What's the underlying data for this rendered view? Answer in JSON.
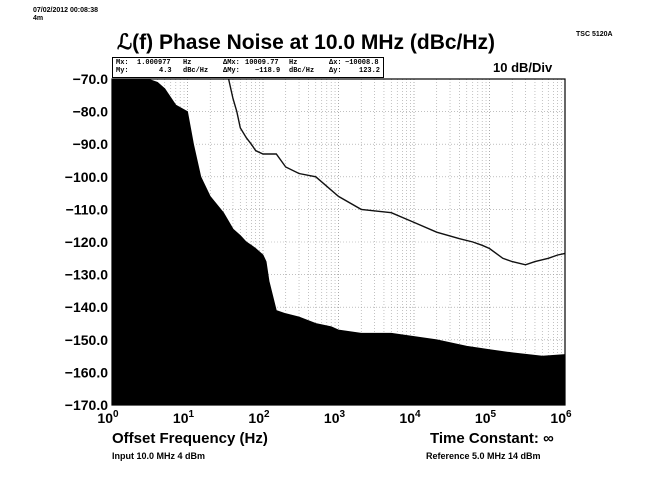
{
  "header": {
    "timestamp": "07/02/2012 00:08:38",
    "duration": "4m",
    "model": "TSC 5120A",
    "title": "ℒ(f) Phase Noise at 10.0 MHz (dBc/Hz)",
    "scale": "10 dB/Div"
  },
  "readout": {
    "mx_label": "Mx:",
    "mx_value": "1.000977",
    "mx_unit": "Hz",
    "my_label": "My:",
    "my_value": "4.3",
    "my_unit": "dBc/Hz",
    "dmx_label": "ΔMx:",
    "dmx_value": "10009.77",
    "dmx_unit": "Hz",
    "dmy_label": "ΔMy:",
    "dmy_value": "−118.9",
    "dmy_unit": "dBc/Hz",
    "dx_label": "Δx:",
    "dx_value": "−10008.8",
    "dy_label": "Δy:",
    "dy_value": "123.2"
  },
  "footer": {
    "xlabel": "Offset Frequency (Hz)",
    "time_constant": "Time Constant: ∞",
    "input": "Input 10.0 MHz 4 dBm",
    "reference": "Reference 5.0 MHz 14 dBm"
  },
  "chart_data": {
    "type": "area",
    "x_scale": "log",
    "xlim": [
      1,
      1000000
    ],
    "ylim": [
      -170,
      -70
    ],
    "grid": true,
    "y_ticks": [
      "−70.0",
      "−80.0",
      "−90.0",
      "−100.0",
      "−110.0",
      "−120.0",
      "−130.0",
      "−140.0",
      "−150.0",
      "−160.0",
      "−170.0"
    ],
    "x_ticks": [
      {
        "base": "10",
        "exp": "0"
      },
      {
        "base": "10",
        "exp": "1"
      },
      {
        "base": "10",
        "exp": "2"
      },
      {
        "base": "10",
        "exp": "3"
      },
      {
        "base": "10",
        "exp": "4"
      },
      {
        "base": "10",
        "exp": "5"
      },
      {
        "base": "10",
        "exp": "6"
      }
    ],
    "series": [
      {
        "kind": "filled",
        "x": [
          1,
          1.5,
          3,
          4,
          5,
          7,
          10,
          12,
          15,
          20,
          30,
          40,
          50,
          60,
          70,
          80,
          100,
          110,
          120,
          150,
          200,
          300,
          500,
          800,
          1000,
          2000,
          5000,
          10000,
          20000,
          50000,
          100000,
          200000,
          500000,
          1000000
        ],
        "y": [
          -70,
          -70,
          -70,
          -71,
          -73,
          -78,
          -80,
          -90,
          -100,
          -106,
          -111,
          -116,
          -118,
          -120,
          -121,
          -122,
          -124,
          -126,
          -132,
          -141,
          -142,
          -143,
          -145,
          -146,
          -147,
          -148,
          -148,
          -149,
          -150,
          -152,
          -153,
          -154,
          -155,
          -154.5
        ]
      },
      {
        "kind": "line",
        "x": [
          35,
          40,
          45,
          50,
          60,
          70,
          80,
          100,
          150,
          200,
          300,
          500,
          1000,
          2000,
          5000,
          10000,
          20000,
          40000,
          60000,
          80000,
          100000,
          150000,
          200000,
          300000,
          400000,
          600000,
          800000,
          1000000
        ],
        "y": [
          -70,
          -76,
          -80,
          -85,
          -88,
          -90,
          -92,
          -93,
          -93,
          -97,
          -99,
          -100,
          -106,
          -110,
          -111,
          -114,
          -117,
          -119,
          -120,
          -121,
          -122,
          -125,
          -126,
          -127,
          -126,
          -125,
          -124,
          -123.5
        ]
      }
    ]
  }
}
